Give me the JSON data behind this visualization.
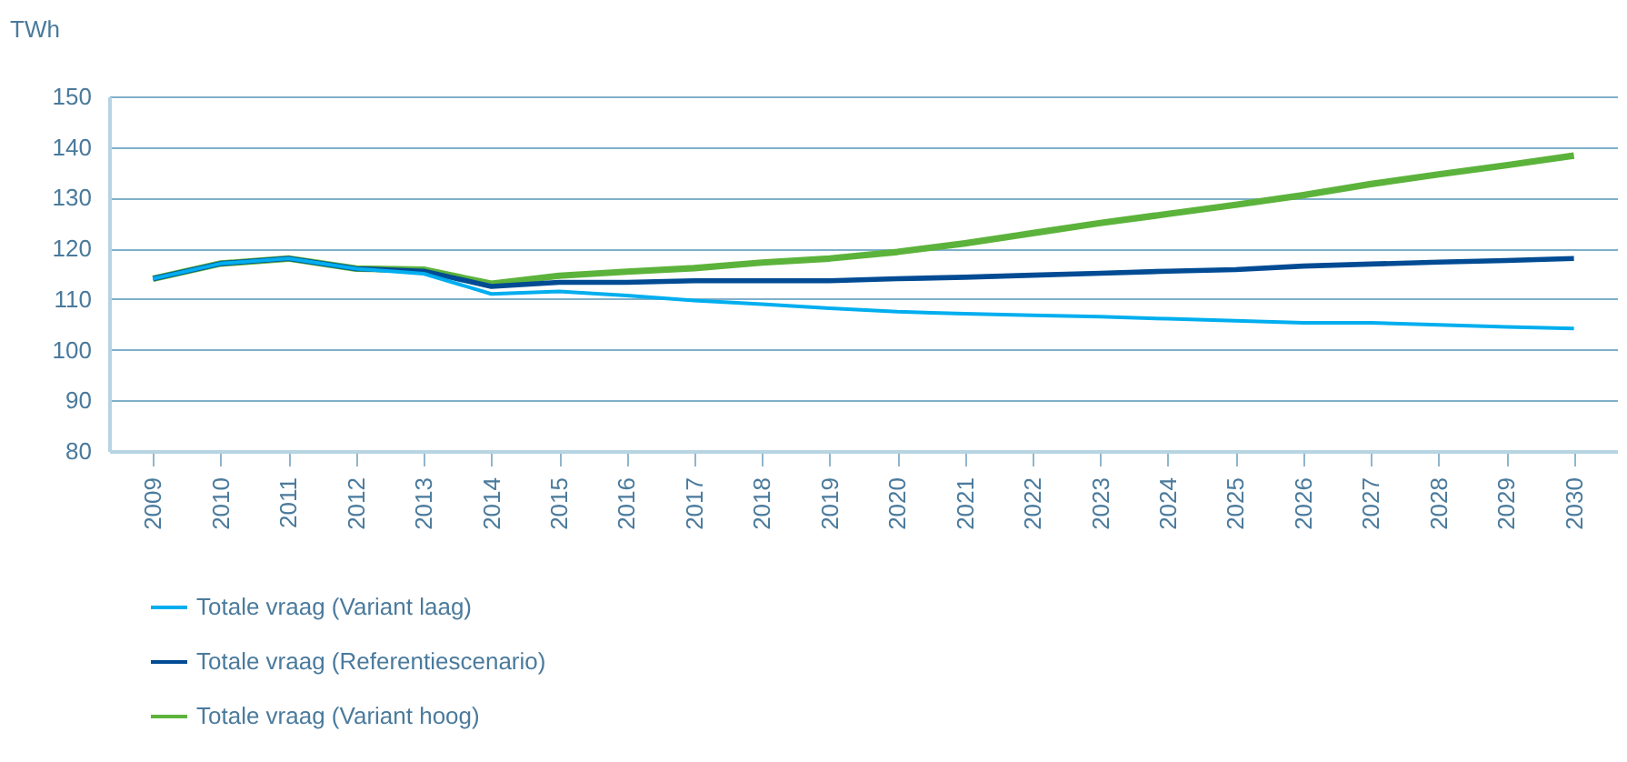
{
  "chart_data": {
    "type": "line",
    "ylabel": "TWh",
    "categories": [
      "2009",
      "2010",
      "2011",
      "2012",
      "2013",
      "2014",
      "2015",
      "2016",
      "2017",
      "2018",
      "2019",
      "2020",
      "2021",
      "2022",
      "2023",
      "2024",
      "2025",
      "2026",
      "2027",
      "2028",
      "2029",
      "2030"
    ],
    "ylim": [
      80,
      150
    ],
    "yticks": [
      80,
      90,
      100,
      110,
      120,
      130,
      140,
      150
    ],
    "grid": "y",
    "legend": "bottom",
    "marker": "none",
    "series": [
      {
        "name": "Totale vraag (Variant laag)",
        "color": "#00aeef",
        "values": [
          114,
          117,
          118,
          116,
          115,
          111,
          111.5,
          110.7,
          109.7,
          109,
          108.2,
          107.5,
          107.1,
          106.8,
          106.5,
          106.1,
          105.7,
          105.3,
          105.3,
          104.9,
          104.5,
          104.2
        ]
      },
      {
        "name": "Totale vraag (Referentiescenario)",
        "color": "#004b93",
        "values": [
          114,
          117,
          118,
          116,
          115.5,
          112.5,
          113.3,
          113.3,
          113.6,
          113.6,
          113.6,
          114,
          114.3,
          114.7,
          115.1,
          115.5,
          115.8,
          116.5,
          116.9,
          117.3,
          117.6,
          118
        ]
      },
      {
        "name": "Totale vraag (Variant hoog)",
        "color": "#5cb33b",
        "values": [
          114,
          117,
          118,
          116,
          115.8,
          113,
          114.6,
          115.4,
          116.1,
          117.2,
          118,
          119.3,
          121,
          123,
          125,
          126.8,
          128.6,
          130.5,
          132.7,
          134.6,
          136.4,
          138.3
        ]
      }
    ]
  }
}
